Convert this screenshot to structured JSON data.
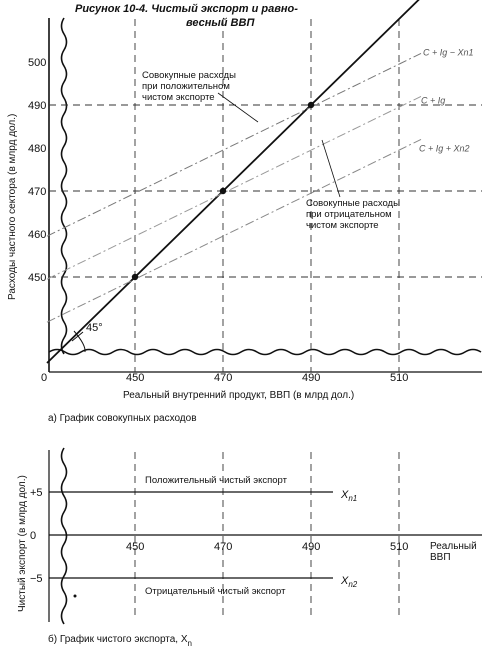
{
  "figure": {
    "title_line1": "Рисунок  10-4. Чистый экспорт и равно-",
    "title_line2": "весный ВВП"
  },
  "chart_data": [
    {
      "type": "line",
      "caption": "а) График совокупных расходов",
      "xlabel": "Реальный внутренний продукт, ВВП (в млрд дол.)",
      "ylabel": "Расходы частного сектора (в млрд дол.)",
      "origin_label": "0",
      "x_ticks": [
        450,
        470,
        490,
        510
      ],
      "y_ticks": [
        450,
        460,
        470,
        480,
        490,
        500
      ],
      "xlim": [
        430,
        525
      ],
      "ylim": [
        430,
        510
      ],
      "grid": "dashed guide lines at equilibria",
      "series": [
        {
          "name": "C + Ig − Xn1",
          "style": "dash-dot",
          "x": [
            430,
            515
          ],
          "y": [
            459.5,
            502
          ]
        },
        {
          "name": "C + Ig",
          "style": "dash-dot",
          "x": [
            430,
            515
          ],
          "y": [
            449.5,
            492
          ]
        },
        {
          "name": "C + Ig + Xn2",
          "style": "dash-dot",
          "x": [
            430,
            515
          ],
          "y": [
            439.5,
            482
          ]
        }
      ],
      "reference_line": {
        "x": [
          430,
          519
        ],
        "y": [
          430,
          519
        ]
      },
      "points": [
        {
          "x": 450,
          "y": 450
        },
        {
          "x": 470,
          "y": 470
        },
        {
          "x": 490,
          "y": 490
        }
      ],
      "annotations": {
        "angle": "45°",
        "positive": [
          "Совокупные расходы",
          "при положительном",
          "чистом экспорте"
        ],
        "negative": [
          "Совокупные расходы",
          "при отрицательном",
          "чистом экспорте"
        ]
      }
    },
    {
      "type": "line",
      "caption": "б) График чистого экспорта, X",
      "caption_sub": "n",
      "xlabel_line1": "Реальный",
      "xlabel_line2": "ВВП",
      "ylabel": "Чистый экспорт (в млрд дол.)",
      "x_ticks": [
        450,
        470,
        490,
        510
      ],
      "y_ticks": [
        5,
        0,
        -5
      ],
      "y_tick_labels": [
        "+5",
        "0",
        "−5"
      ],
      "xlim": [
        430,
        525
      ],
      "ylim": [
        -10,
        10
      ],
      "series": [
        {
          "name": "Положительный чистый экспорт",
          "label": "X",
          "label_sub": "n1",
          "x": [
            430,
            495
          ],
          "y": [
            5,
            5
          ]
        },
        {
          "name": "Отрицательный чистый экспорт",
          "label": "X",
          "label_sub": "n2",
          "x": [
            430,
            495
          ],
          "y": [
            -5,
            -5
          ]
        }
      ]
    }
  ]
}
